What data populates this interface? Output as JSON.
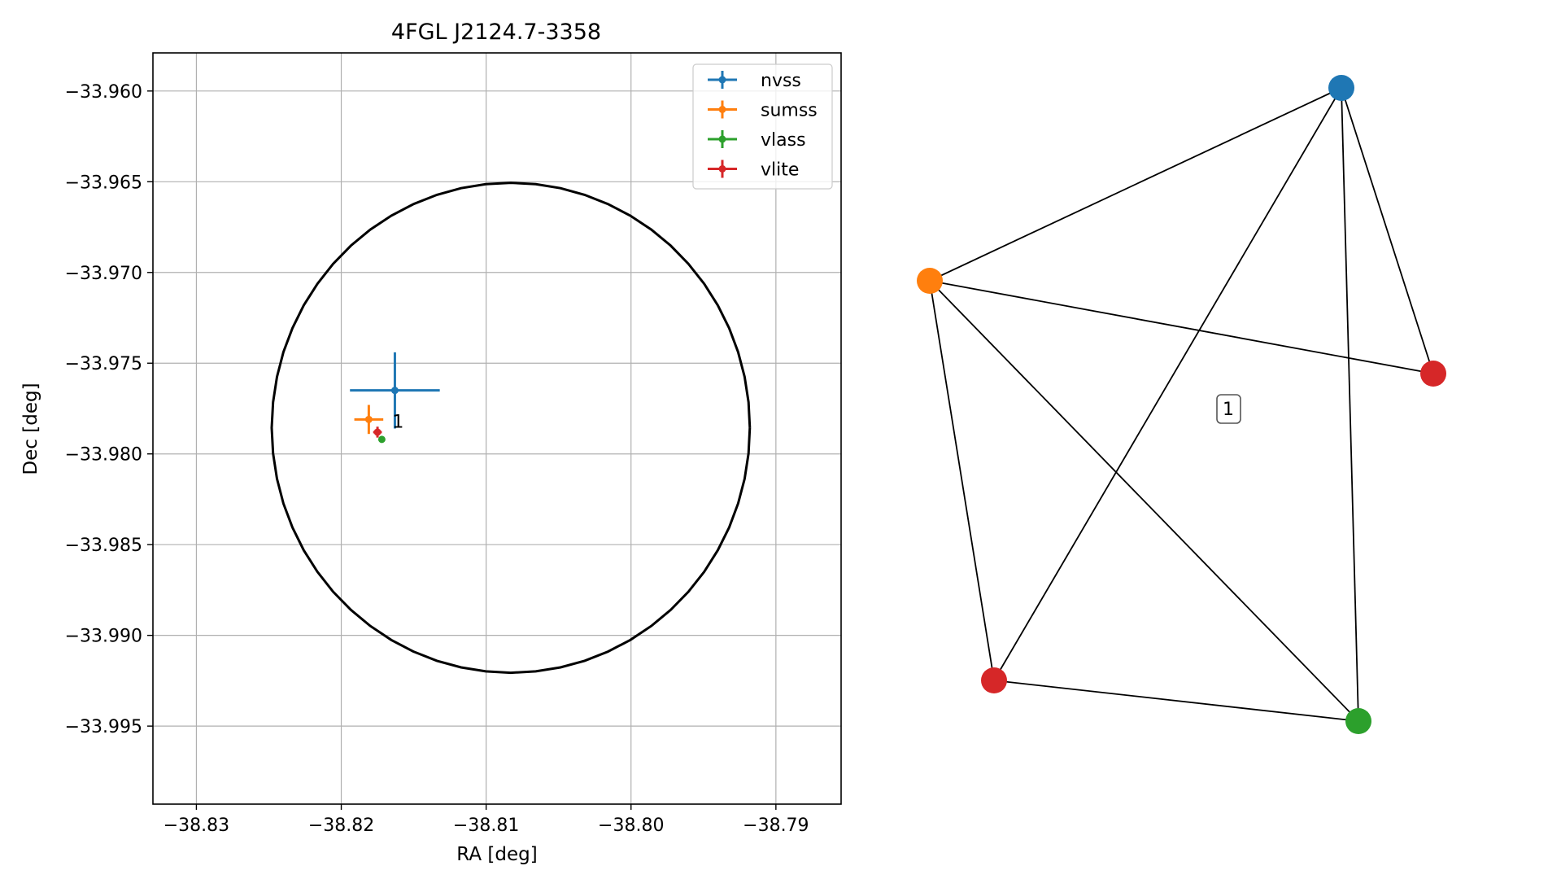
{
  "chart_data": [
    {
      "type": "scatter",
      "title": "4FGL J2124.7-3358",
      "xlabel": "RA [deg]",
      "ylabel": "Dec [deg]",
      "xlim": [
        -38.833,
        -38.7855
      ],
      "ylim": [
        -33.9993,
        -33.9579
      ],
      "xticks": [
        -38.83,
        -38.82,
        -38.81,
        -38.8,
        -38.79
      ],
      "xtick_labels": [
        "−38.83",
        "−38.82",
        "−38.81",
        "−38.80",
        "−38.79"
      ],
      "yticks": [
        -33.96,
        -33.965,
        -33.97,
        -33.975,
        -33.98,
        -33.985,
        -33.99,
        -33.995
      ],
      "ytick_labels": [
        "−33.960",
        "−33.965",
        "−33.970",
        "−33.975",
        "−33.980",
        "−33.985",
        "−33.990",
        "−33.995"
      ],
      "grid": true,
      "legend_position": "top-right",
      "series": [
        {
          "name": "nvss",
          "color": "#1f77b4",
          "x": -38.8163,
          "y": -33.9765,
          "xerr": 0.0031,
          "yerr": 0.0021
        },
        {
          "name": "sumss",
          "color": "#ff7f0e",
          "x": -38.8181,
          "y": -33.9781,
          "xerr": 0.001,
          "yerr": 0.0008
        },
        {
          "name": "vlass",
          "color": "#2ca02c",
          "x": -38.8172,
          "y": -33.9792,
          "xerr": 0.0001,
          "yerr": 0.0001
        },
        {
          "name": "vlite",
          "color": "#d62728",
          "x": -38.8175,
          "y": -33.9788,
          "xerr": 0.0003,
          "yerr": 0.0003
        }
      ],
      "ellipse": {
        "center_x": -38.8083,
        "center_y": -33.97856,
        "semi_x": 0.0165,
        "semi_y": 0.0135,
        "color": "#000000"
      },
      "annotations": [
        {
          "text": "1",
          "x": -38.8163,
          "y": -33.9782
        }
      ]
    },
    {
      "type": "graph",
      "nodes": [
        {
          "id": "nvss",
          "color": "#1f77b4"
        },
        {
          "id": "sumss",
          "color": "#ff7f0e"
        },
        {
          "id": "vlite_a",
          "color": "#d62728"
        },
        {
          "id": "vlite_b",
          "color": "#d62728"
        },
        {
          "id": "vlass",
          "color": "#2ca02c"
        }
      ],
      "edges": [
        [
          "nvss",
          "sumss"
        ],
        [
          "nvss",
          "vlite_a"
        ],
        [
          "nvss",
          "vlite_b"
        ],
        [
          "nvss",
          "vlass"
        ],
        [
          "sumss",
          "vlite_a"
        ],
        [
          "sumss",
          "vlite_b"
        ],
        [
          "sumss",
          "vlass"
        ],
        [
          "vlite_b",
          "vlass"
        ]
      ],
      "label": "1"
    }
  ]
}
